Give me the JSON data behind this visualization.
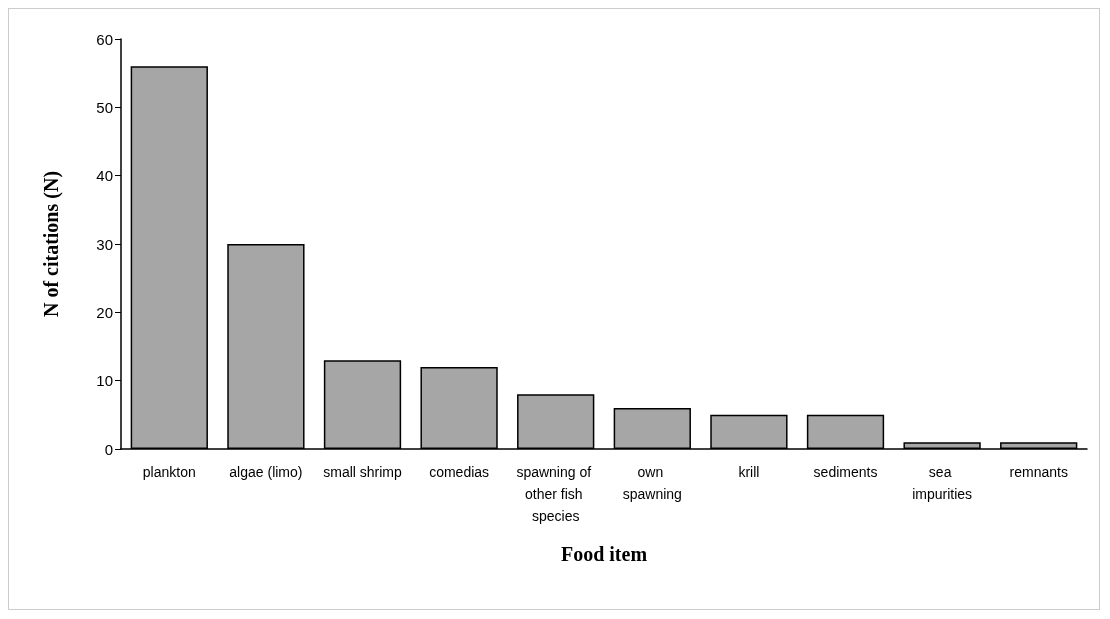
{
  "chart_data": {
    "type": "bar",
    "xlabel": "Food item",
    "ylabel": "N of citations (N)",
    "categories": [
      "plankton",
      "algae (limo)",
      "small shrimp",
      "comedias",
      "spawning of other fish species",
      "own spawning",
      "krill",
      "sediments",
      "sea impurities",
      "remnants"
    ],
    "values": [
      56,
      30,
      13,
      12,
      8,
      6,
      5,
      5,
      1,
      1
    ],
    "color": "#a6a6a6",
    "ylim": [
      0,
      60
    ],
    "yticks": [
      0,
      10,
      20,
      30,
      40,
      50,
      60
    ],
    "grid": false
  }
}
